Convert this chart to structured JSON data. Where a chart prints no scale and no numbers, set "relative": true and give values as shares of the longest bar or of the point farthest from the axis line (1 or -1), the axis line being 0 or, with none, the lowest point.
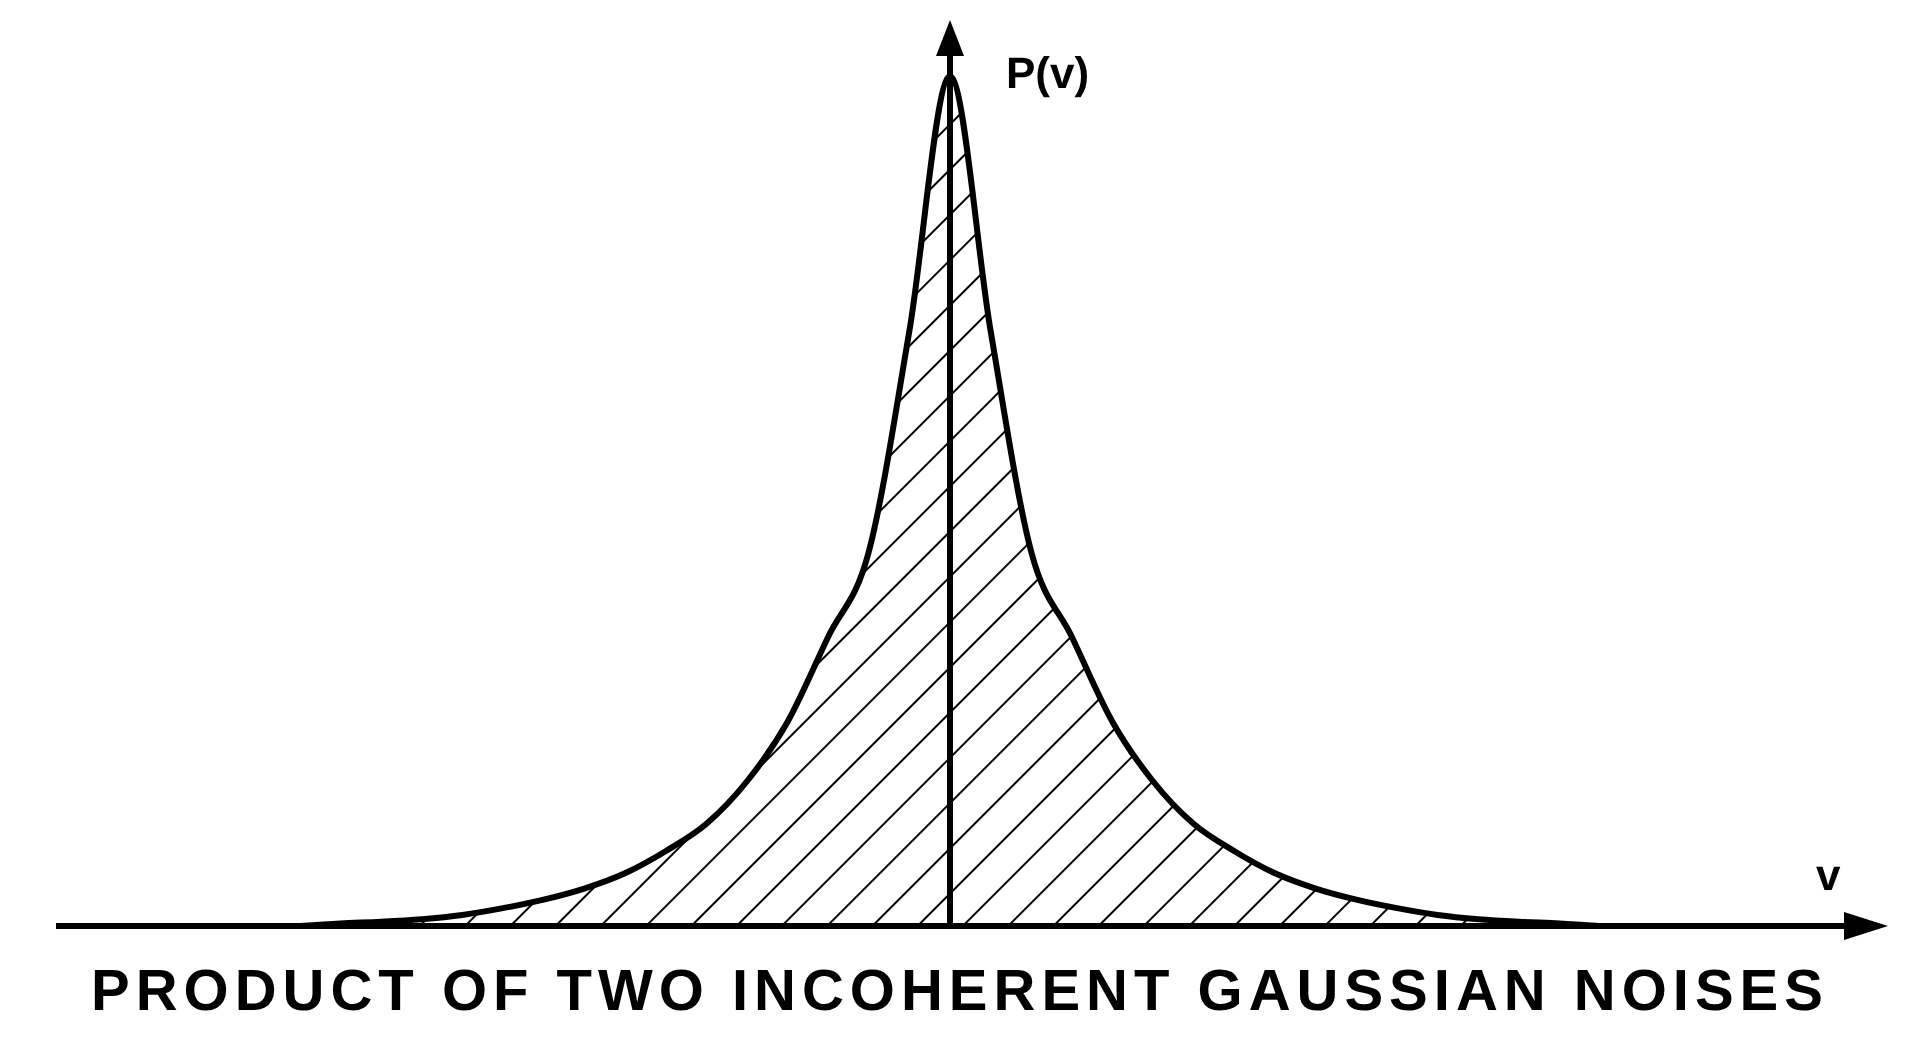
{
  "chart_data": {
    "type": "area",
    "title": "PRODUCT OF TWO INCOHERENT GAUSSIAN NOISES",
    "xlabel": "v",
    "ylabel": "P(v)",
    "relative": true,
    "grid": false,
    "legend": false,
    "categories": [
      null,
      null,
      null,
      null,
      null,
      null,
      null,
      null,
      null,
      null,
      null,
      null,
      null,
      null,
      null,
      null,
      null,
      null,
      null,
      null,
      null,
      null,
      null,
      null,
      null,
      null,
      null,
      null,
      null,
      null,
      null,
      null,
      null,
      null,
      null,
      null,
      null,
      null,
      null,
      null,
      null,
      null,
      null,
      null,
      null
    ],
    "series": [
      {
        "color": "#000000",
        "values": [
          null,
          null,
          null,
          null,
          null,
          null,
          0,
          0.003,
          0.005,
          0.008,
          0.013,
          0.021,
          0.031,
          0.044,
          0.062,
          0.088,
          0.12,
          0.17,
          0.24,
          0.34,
          0.44,
          0.7,
          1,
          0.7,
          0.44,
          0.34,
          0.24,
          0.17,
          0.12,
          0.088,
          0.062,
          0.044,
          0.031,
          0.021,
          0.013,
          0.008,
          0.005,
          0.003,
          0,
          null,
          null,
          null,
          null,
          null,
          null
        ]
      }
    ]
  }
}
